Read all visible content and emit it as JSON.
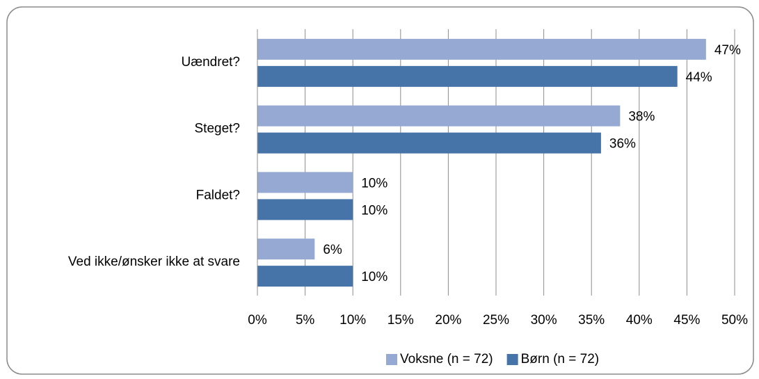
{
  "chart_data": {
    "type": "barh",
    "categories": [
      "Uændret?",
      "Steget?",
      "Faldet?",
      "Ved ikke/ønsker ikke at svare"
    ],
    "series": [
      {
        "name": "Voksne (n = 72)",
        "color": "#95a9d2",
        "values": [
          47,
          38,
          10,
          6
        ],
        "value_labels": [
          "47%",
          "38%",
          "10%",
          "6%"
        ]
      },
      {
        "name": "Børn (n = 72)",
        "color": "#4674a8",
        "values": [
          44,
          36,
          10,
          10
        ],
        "value_labels": [
          "44%",
          "36%",
          "10%",
          "10%"
        ]
      }
    ],
    "xlim": [
      0,
      50
    ],
    "xticks": [
      {
        "value": 0,
        "label": "0%"
      },
      {
        "value": 5,
        "label": "5%"
      },
      {
        "value": 10,
        "label": "10%"
      },
      {
        "value": 15,
        "label": "15%"
      },
      {
        "value": 20,
        "label": "20%"
      },
      {
        "value": 25,
        "label": "25%"
      },
      {
        "value": 30,
        "label": "30%"
      },
      {
        "value": 35,
        "label": "35%"
      },
      {
        "value": 40,
        "label": "40%"
      },
      {
        "value": 45,
        "label": "45%"
      },
      {
        "value": 50,
        "label": "50%"
      }
    ],
    "grid": true,
    "legend": "bottom"
  }
}
